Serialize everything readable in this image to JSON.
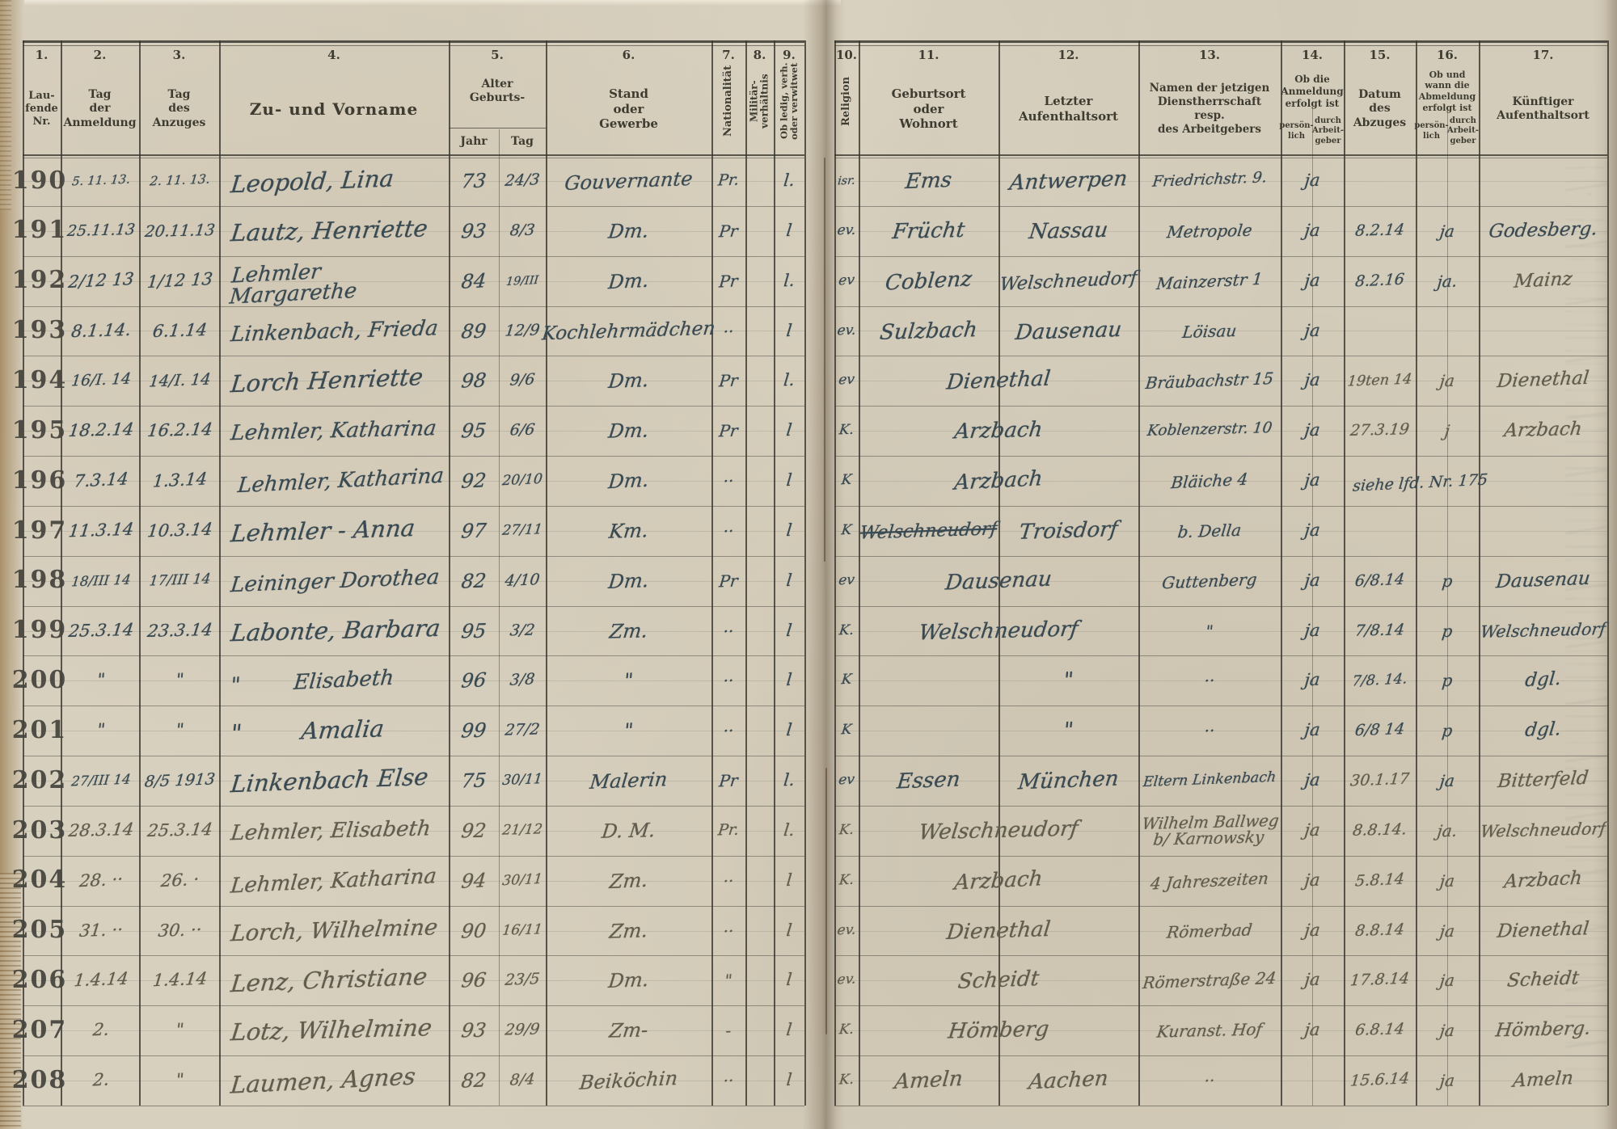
{
  "colors": {
    "ink": "#3a4a52",
    "pencil": "#615d4e",
    "printed": "#3e3c31",
    "paper": "#d6cebc"
  },
  "header": {
    "cols": [
      {
        "num": "1.",
        "label": "Lau-\nfende\nNr."
      },
      {
        "num": "2.",
        "label": "Tag\nder\nAnmeldung"
      },
      {
        "num": "3.",
        "label": "Tag\ndes\nAnzuges"
      },
      {
        "num": "4.",
        "label": "Zu- und Vorname"
      },
      {
        "num": "5.",
        "label": "Alter\nGeburts-",
        "subs": [
          "Jahr",
          "Tag"
        ]
      },
      {
        "num": "6.",
        "label": "Stand\noder\nGewerbe"
      },
      {
        "num": "7.",
        "label": "Nationalität"
      },
      {
        "num": "8.",
        "label": "Militär-\nverhältnis"
      },
      {
        "num": "9.",
        "label": "Ob ledig, verh.\noder verwitwet"
      },
      {
        "num": "10.",
        "label": "Religion"
      },
      {
        "num": "11.",
        "label": "Geburtsort\noder\nWohnort"
      },
      {
        "num": "12.",
        "label": "Letzter\nAufenthaltsort"
      },
      {
        "num": "13.",
        "label": "Namen der jetzigen\nDienstherrschaft\nresp.\ndes Arbeitgebers"
      },
      {
        "num": "14.",
        "label": "Ob die\nAnmeldung\nerfolgt ist",
        "subs": [
          "persön-\nlich",
          "durch\nArbeit-\ngeber"
        ]
      },
      {
        "num": "15.",
        "label": "Datum\ndes\nAbzuges"
      },
      {
        "num": "16.",
        "label": "Ob und\nwann die\nAbmeldung\nerfolgt ist",
        "subs": [
          "persön-\nlich",
          "durch\nArbeit-\ngeber"
        ]
      },
      {
        "num": "17.",
        "label": "Künftiger\nAufenthaltsort"
      }
    ]
  },
  "rows": [
    {
      "nr": "190",
      "c2": "5. 11. 13.",
      "c3": "2. 11. 13.",
      "name": "Leopold, Lina",
      "jahr": "73",
      "tag": "24/3",
      "stand": "Gouvernante",
      "nat": "Pr.",
      "mil": "",
      "led": "l.",
      "rel": "isr.",
      "geb": "Ems",
      "auf": "Antwerpen",
      "dienst": "Friedrichstr. 9.",
      "c14": "ja",
      "abzug": "",
      "c16": "",
      "ziel": "",
      "medium": "ink"
    },
    {
      "nr": "191",
      "c2": "25.11.13",
      "c3": "20.11.13",
      "name": "Lautz, Henriette",
      "jahr": "93",
      "tag": "8/3",
      "stand": "Dm.",
      "nat": "Pr",
      "mil": "",
      "led": "l",
      "rel": "ev.",
      "geb": "Frücht",
      "auf": "Nassau",
      "dienst": "Metropole",
      "c14": "ja",
      "abzug": "8.2.14",
      "c16": "ja",
      "ziel": "Godesberg.",
      "medium": "ink"
    },
    {
      "nr": "192",
      "c2": "2/12 13",
      "c3": "1/12 13",
      "name": "Lehmler Margarethe",
      "jahr": "84",
      "tag": "19/III",
      "stand": "Dm.",
      "nat": "Pr",
      "mil": "",
      "led": "l.",
      "rel": "ev",
      "geb": "Coblenz",
      "auf": "Welschneudorf",
      "dienst": "Mainzerstr 1",
      "c14": "ja",
      "abzug": "8.2.16",
      "c16": "ja.",
      "ziel": "Mainz",
      "medium": "ink"
    },
    {
      "nr": "193",
      "c2": "8.1.14.",
      "c3": "6.1.14",
      "name": "Linkenbach, Frieda",
      "jahr": "89",
      "tag": "12/9",
      "stand": "Kochlehrmädchen",
      "nat": "··",
      "mil": "",
      "led": "l",
      "rel": "ev.",
      "geb": "Sulzbach",
      "auf": "Dausenau",
      "dienst": "Löisau",
      "c14": "ja",
      "abzug": "",
      "c16": "",
      "ziel": "",
      "medium": "ink"
    },
    {
      "nr": "194",
      "c2": "16/I. 14",
      "c3": "14/I. 14",
      "name": "Lorch Henriette",
      "jahr": "98",
      "tag": "9/6",
      "stand": "Dm.",
      "nat": "Pr",
      "mil": "",
      "led": "l.",
      "rel": "ev",
      "geb": "Dienethal",
      "auf": "",
      "dienst": "Bräubachstr 15",
      "c14": "ja",
      "abzug": "19ten 14",
      "c16": "ja",
      "ziel": "Dienethal",
      "medium": "ink",
      "geb_span": true
    },
    {
      "nr": "195",
      "c2": "18.2.14",
      "c3": "16.2.14",
      "name": "Lehmler, Katharina",
      "jahr": "95",
      "tag": "6/6",
      "stand": "Dm.",
      "nat": "Pr",
      "mil": "",
      "led": "l",
      "rel": "K.",
      "geb": "Arzbach",
      "auf": "",
      "dienst": "Koblenzerstr. 10",
      "c14": "ja",
      "abzug": "27.3.19",
      "c16": "j",
      "ziel": "Arzbach",
      "medium": "ink",
      "geb_span": true
    },
    {
      "nr": "196",
      "c2": "7.3.14",
      "c3": "1.3.14",
      "name": "Lehmler, Katharina",
      "jahr": "92",
      "tag": "20/10",
      "stand": "Dm.",
      "nat": "··",
      "mil": "",
      "led": "l",
      "rel": "K",
      "geb": "Arzbach",
      "auf": "",
      "dienst": "Bläiche 4",
      "c14": "ja",
      "abzug": "siehe lfd. Nr. 175",
      "c16": "",
      "ziel": "",
      "medium": "ink",
      "geb_span": true,
      "abzug_span": true
    },
    {
      "nr": "197",
      "c2": "11.3.14",
      "c3": "10.3.14",
      "name": "Lehmler - Anna",
      "jahr": "97",
      "tag": "27/11",
      "stand": "Km.",
      "nat": "··",
      "mil": "",
      "led": "l",
      "rel": "K",
      "geb": "Welschneudorf",
      "auf": "Troisdorf",
      "dienst": "b. Della",
      "c14": "ja",
      "abzug": "",
      "c16": "",
      "ziel": "",
      "medium": "ink",
      "geb_struck": true
    },
    {
      "nr": "198",
      "c2": "18/III 14",
      "c3": "17/III 14",
      "name": "Leininger Dorothea",
      "jahr": "82",
      "tag": "4/10",
      "stand": "Dm.",
      "nat": "Pr",
      "mil": "",
      "led": "l",
      "rel": "ev",
      "geb": "Dausenau",
      "auf": "",
      "dienst": "Guttenberg",
      "c14": "ja",
      "abzug": "6/8.14",
      "c16": "p",
      "ziel": "Dausenau",
      "medium": "ink",
      "geb_span": true
    },
    {
      "nr": "199",
      "c2": "25.3.14",
      "c3": "23.3.14",
      "name": "Labonte, Barbara",
      "jahr": "95",
      "tag": "3/2",
      "stand": "Zm.",
      "nat": "··",
      "mil": "",
      "led": "l",
      "rel": "K.",
      "geb": "Welschneudorf",
      "auf": "",
      "dienst": "\"",
      "c14": "ja",
      "abzug": "7/8.14",
      "c16": "p",
      "ziel": "Welschneudorf",
      "medium": "ink",
      "geb_span": true
    },
    {
      "nr": "200",
      "c2": "\"",
      "c3": "\"",
      "name": "\"        Elisabeth",
      "jahr": "96",
      "tag": "3/8",
      "stand": "\"",
      "nat": "··",
      "mil": "",
      "led": "l",
      "rel": "K",
      "geb": "",
      "auf": "\"",
      "dienst": "··",
      "c14": "ja",
      "abzug": "7/8. 14.",
      "c16": "p",
      "ziel": "dgl.",
      "medium": "ink"
    },
    {
      "nr": "201",
      "c2": "\"",
      "c3": "\"",
      "name": "\"        Amalia",
      "jahr": "99",
      "tag": "27/2",
      "stand": "\"",
      "nat": "··",
      "mil": "",
      "led": "l",
      "rel": "K",
      "geb": "",
      "auf": "\"",
      "dienst": "··",
      "c14": "ja",
      "abzug": "6/8 14",
      "c16": "p",
      "ziel": "dgl.",
      "medium": "ink"
    },
    {
      "nr": "202",
      "c2": "27/III 14",
      "c3": "8/5 1913",
      "name": "Linkenbach Else",
      "jahr": "75",
      "tag": "30/11",
      "stand": "Malerin",
      "nat": "Pr",
      "mil": "",
      "led": "l.",
      "rel": "ev",
      "geb": "Essen",
      "auf": "München",
      "dienst": "Eltern Linkenbach",
      "c14": "ja",
      "abzug": "30.1.17",
      "c16": "ja",
      "ziel": "Bitterfeld",
      "medium": "ink"
    },
    {
      "nr": "203",
      "c2": "28.3.14",
      "c3": "25.3.14",
      "name": "Lehmler, Elisabeth",
      "jahr": "92",
      "tag": "21/12",
      "stand": "D. M.",
      "nat": "Pr.",
      "mil": "",
      "led": "l.",
      "rel": "K.",
      "geb": "Welschneudorf",
      "auf": "",
      "dienst": "Wilhelm Ballweg\nb/ Karnowsky",
      "c14": "ja",
      "abzug": "8.8.14.",
      "c16": "ja.",
      "ziel": "Welschneudorf",
      "medium": "pencil",
      "geb_span": true
    },
    {
      "nr": "204",
      "c2": "28. ··",
      "c3": "26. ·",
      "name": "Lehmler, Katharina",
      "jahr": "94",
      "tag": "30/11",
      "stand": "Zm.",
      "nat": "··",
      "mil": "",
      "led": "l",
      "rel": "K.",
      "geb": "Arzbach",
      "auf": "",
      "dienst": "4 Jahreszeiten",
      "c14": "ja",
      "abzug": "5.8.14",
      "c16": "ja",
      "ziel": "Arzbach",
      "medium": "pencil",
      "geb_span": true
    },
    {
      "nr": "205",
      "c2": "31. ··",
      "c3": "30. ··",
      "name": "Lorch, Wilhelmine",
      "jahr": "90",
      "tag": "16/11",
      "stand": "Zm.",
      "nat": "··",
      "mil": "",
      "led": "l",
      "rel": "ev.",
      "geb": "Dienethal",
      "auf": "",
      "dienst": "Römerbad",
      "c14": "ja",
      "abzug": "8.8.14",
      "c16": "ja",
      "ziel": "Dienethal",
      "medium": "pencil",
      "geb_span": true
    },
    {
      "nr": "206",
      "c2": "1.4.14",
      "c3": "1.4.14",
      "name": "Lenz, Christiane",
      "jahr": "96",
      "tag": "23/5",
      "stand": "Dm.",
      "nat": "\"",
      "mil": "",
      "led": "l",
      "rel": "ev.",
      "geb": "Scheidt",
      "auf": "",
      "dienst": "Römerstraße 24",
      "c14": "ja",
      "abzug": "17.8.14",
      "c16": "ja",
      "ziel": "Scheidt",
      "medium": "pencil",
      "geb_span": true
    },
    {
      "nr": "207",
      "c2": "2.",
      "c3": "\"",
      "name": "Lotz, Wilhelmine",
      "jahr": "93",
      "tag": "29/9",
      "stand": "Zm-",
      "nat": "-",
      "mil": "",
      "led": "l",
      "rel": "K.",
      "geb": "Hömberg",
      "auf": "",
      "dienst": "Kuranst. Hof",
      "c14": "ja",
      "abzug": "6.8.14",
      "c16": "ja",
      "ziel": "Hömberg.",
      "medium": "pencil",
      "geb_span": true
    },
    {
      "nr": "208",
      "c2": "2.",
      "c3": "\"",
      "name": "Laumen, Agnes",
      "jahr": "82",
      "tag": "8/4",
      "stand": "Beiköchin",
      "nat": "··",
      "mil": "",
      "led": "l",
      "rel": "K.",
      "geb": "Ameln",
      "auf": "Aachen",
      "dienst": "··",
      "c14": "",
      "abzug": "15.6.14",
      "c16": "ja",
      "ziel": "Ameln",
      "medium": "pencil"
    }
  ]
}
